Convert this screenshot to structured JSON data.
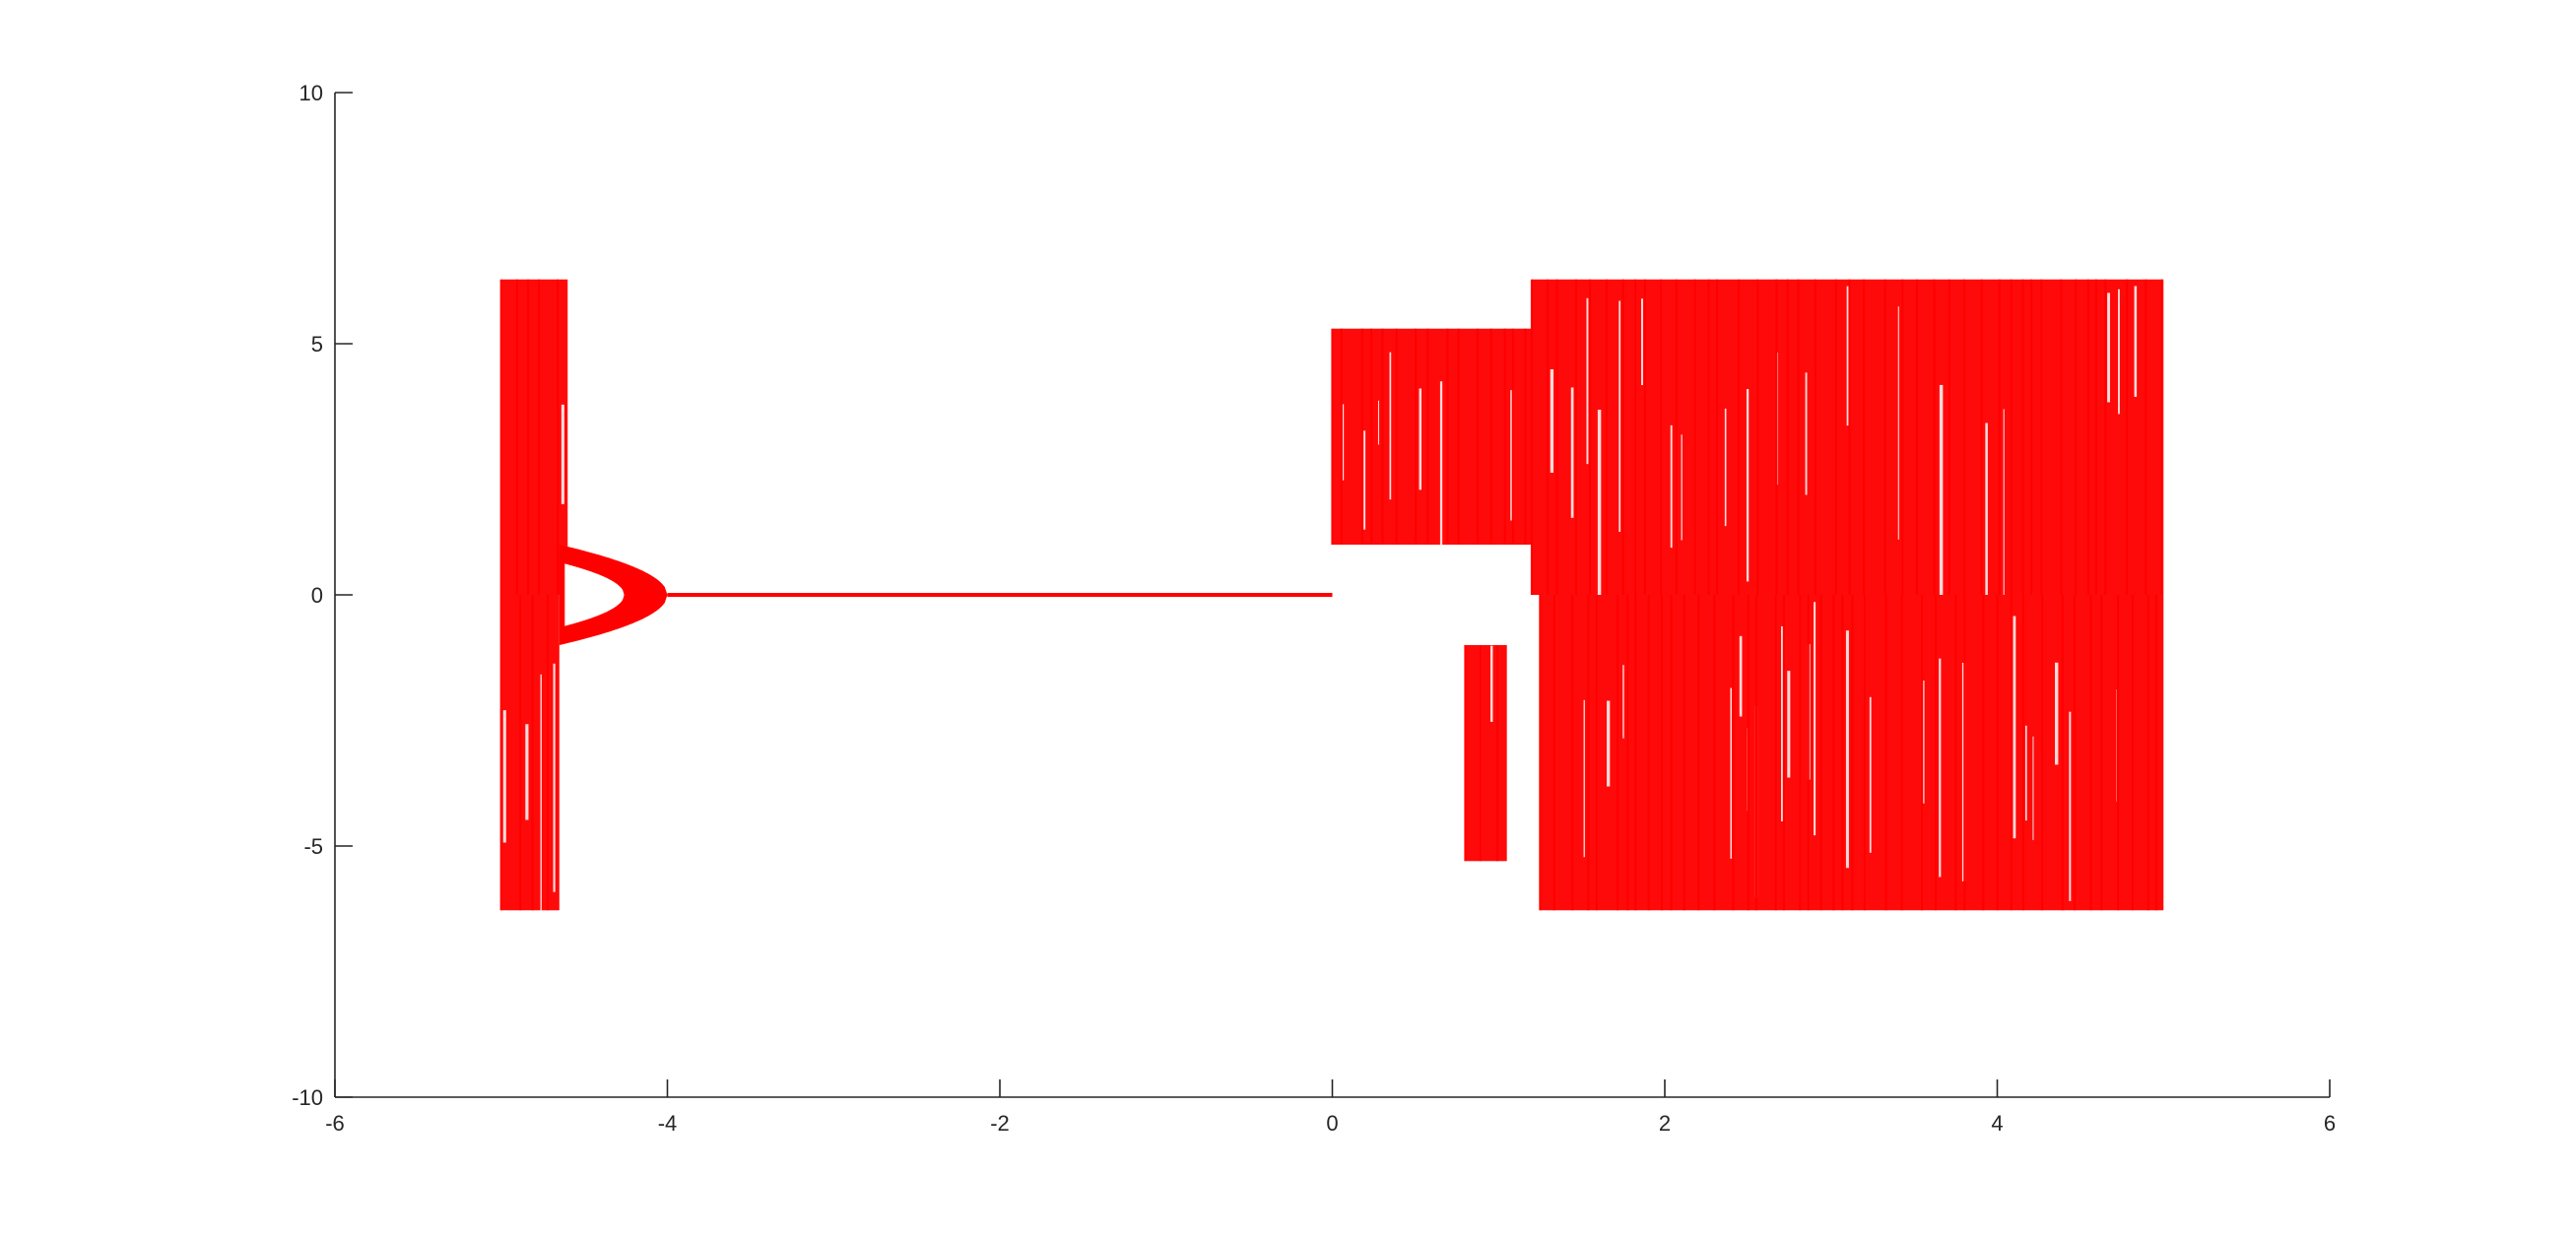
{
  "chart_data": {
    "type": "scatter",
    "title": "",
    "xlabel": "",
    "ylabel": "",
    "xlim": [
      -6,
      6
    ],
    "ylim": [
      -10,
      10
    ],
    "grid": false,
    "legend": "none",
    "color": "#ff0000",
    "xticks": [
      {
        "value": -6,
        "label": "-6"
      },
      {
        "value": -4,
        "label": "-4"
      },
      {
        "value": -2,
        "label": "-2"
      },
      {
        "value": 0,
        "label": "0"
      },
      {
        "value": 2,
        "label": "2"
      },
      {
        "value": 4,
        "label": "4"
      },
      {
        "value": 6,
        "label": "6"
      }
    ],
    "yticks": [
      {
        "value": -10,
        "label": "-10"
      },
      {
        "value": -5,
        "label": "-5"
      },
      {
        "value": 0,
        "label": "0"
      },
      {
        "value": 5,
        "label": "5"
      },
      {
        "value": 10,
        "label": "10"
      }
    ],
    "series": [
      {
        "kind": "band",
        "description_regions": [
          {
            "x": [
              -5.0,
              -4.6
            ],
            "y": [
              0.0,
              6.28
            ]
          },
          {
            "x": [
              -5.0,
              -4.65
            ],
            "y": [
              -6.28,
              0.0
            ]
          },
          {
            "x": [
              0.0,
              1.2
            ],
            "y": [
              1.0,
              5.3
            ]
          },
          {
            "x": [
              0.8,
              1.05
            ],
            "y": [
              -5.3,
              -1.0
            ]
          },
          {
            "x": [
              1.2,
              5.0
            ],
            "y": [
              0.0,
              6.28
            ]
          },
          {
            "x": [
              1.25,
              5.0
            ],
            "y": [
              -6.28,
              0.0
            ]
          }
        ]
      },
      {
        "kind": "parabola",
        "x_start": -4.65,
        "x_end": -4.0,
        "y_amplitude": 1.0
      },
      {
        "kind": "fixed-line",
        "x": [
          -4.0,
          0.0
        ],
        "y": 0.0
      }
    ]
  }
}
